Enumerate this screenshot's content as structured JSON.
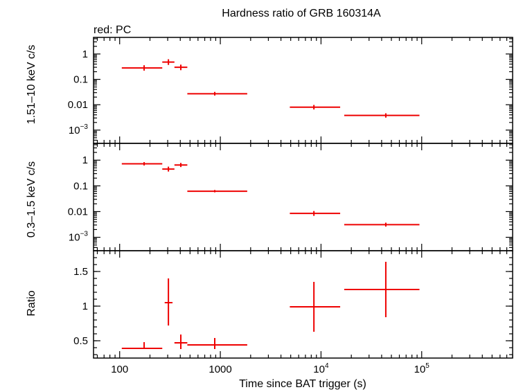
{
  "chart_data": {
    "type": "scatter",
    "title": "Hardness ratio of GRB 160314A",
    "legend": "red: PC",
    "colors": {
      "series": "#ee0000",
      "axis": "#000000"
    },
    "xlabel": "Time since BAT trigger (s)",
    "xscale": "log",
    "xlim": [
      55,
      800000
    ],
    "xticks": [
      {
        "value": 100,
        "label": "100"
      },
      {
        "value": 1000,
        "label": "1000"
      },
      {
        "value": 10000,
        "label": "10",
        "exp": "4"
      },
      {
        "value": 100000,
        "label": "10",
        "exp": "5"
      }
    ],
    "panels": [
      {
        "ylabel": "1.51–10 keV c/s",
        "yscale": "log",
        "ylim": [
          0.0003,
          4.5
        ],
        "yticks": [
          {
            "value": 1,
            "label": "1"
          },
          {
            "value": 0.1,
            "label": "0.1"
          },
          {
            "value": 0.01,
            "label": "0.01"
          },
          {
            "value": 0.001,
            "label": "10",
            "exp": "−3"
          }
        ],
        "points": [
          {
            "x": 175,
            "xlo": 105,
            "xhi": 265,
            "y": 0.28,
            "ylo": 0.22,
            "yhi": 0.36
          },
          {
            "x": 305,
            "xlo": 265,
            "xhi": 350,
            "y": 0.48,
            "ylo": 0.37,
            "yhi": 0.62
          },
          {
            "x": 405,
            "xlo": 350,
            "xhi": 470,
            "y": 0.3,
            "ylo": 0.23,
            "yhi": 0.38
          },
          {
            "x": 880,
            "xlo": 470,
            "xhi": 1850,
            "y": 0.027,
            "ylo": 0.023,
            "yhi": 0.032
          },
          {
            "x": 8500,
            "xlo": 4900,
            "xhi": 15500,
            "y": 0.008,
            "ylo": 0.0065,
            "yhi": 0.0098
          },
          {
            "x": 44000,
            "xlo": 17000,
            "xhi": 95000,
            "y": 0.0038,
            "ylo": 0.0031,
            "yhi": 0.0046
          }
        ]
      },
      {
        "ylabel": "0.3–1.5 keV c/s",
        "yscale": "log",
        "ylim": [
          0.0003,
          4.5
        ],
        "yticks": [
          {
            "value": 1,
            "label": "1"
          },
          {
            "value": 0.1,
            "label": "0.1"
          },
          {
            "value": 0.01,
            "label": "0.01"
          },
          {
            "value": 0.001,
            "label": "10",
            "exp": "−3"
          }
        ],
        "points": [
          {
            "x": 175,
            "xlo": 105,
            "xhi": 265,
            "y": 0.72,
            "ylo": 0.62,
            "yhi": 0.84
          },
          {
            "x": 305,
            "xlo": 265,
            "xhi": 350,
            "y": 0.45,
            "ylo": 0.36,
            "yhi": 0.56
          },
          {
            "x": 405,
            "xlo": 350,
            "xhi": 470,
            "y": 0.65,
            "ylo": 0.54,
            "yhi": 0.78
          },
          {
            "x": 880,
            "xlo": 470,
            "xhi": 1850,
            "y": 0.062,
            "ylo": 0.056,
            "yhi": 0.069
          },
          {
            "x": 8500,
            "xlo": 4900,
            "xhi": 15500,
            "y": 0.0085,
            "ylo": 0.0068,
            "yhi": 0.0105
          },
          {
            "x": 44000,
            "xlo": 17000,
            "xhi": 95000,
            "y": 0.0031,
            "ylo": 0.0026,
            "yhi": 0.0037
          }
        ]
      },
      {
        "ylabel": "Ratio",
        "yscale": "linear",
        "ylim": [
          0.25,
          1.8
        ],
        "yticks": [
          {
            "value": 0.5,
            "label": "0.5"
          },
          {
            "value": 1,
            "label": "1"
          },
          {
            "value": 1.5,
            "label": "1.5"
          }
        ],
        "points": [
          {
            "x": 175,
            "xlo": 105,
            "xhi": 265,
            "y": 0.39,
            "ylo": 0.3,
            "yhi": 0.48
          },
          {
            "x": 305,
            "xlo": 280,
            "xhi": 335,
            "y": 1.05,
            "ylo": 0.72,
            "yhi": 1.4
          },
          {
            "x": 405,
            "xlo": 350,
            "xhi": 470,
            "y": 0.47,
            "ylo": 0.36,
            "yhi": 0.59
          },
          {
            "x": 880,
            "xlo": 470,
            "xhi": 1850,
            "y": 0.44,
            "ylo": 0.35,
            "yhi": 0.54
          },
          {
            "x": 8500,
            "xlo": 4900,
            "xhi": 15500,
            "y": 0.99,
            "ylo": 0.63,
            "yhi": 1.35
          },
          {
            "x": 44000,
            "xlo": 17000,
            "xhi": 95000,
            "y": 1.24,
            "ylo": 0.84,
            "yhi": 1.64
          }
        ]
      }
    ]
  }
}
